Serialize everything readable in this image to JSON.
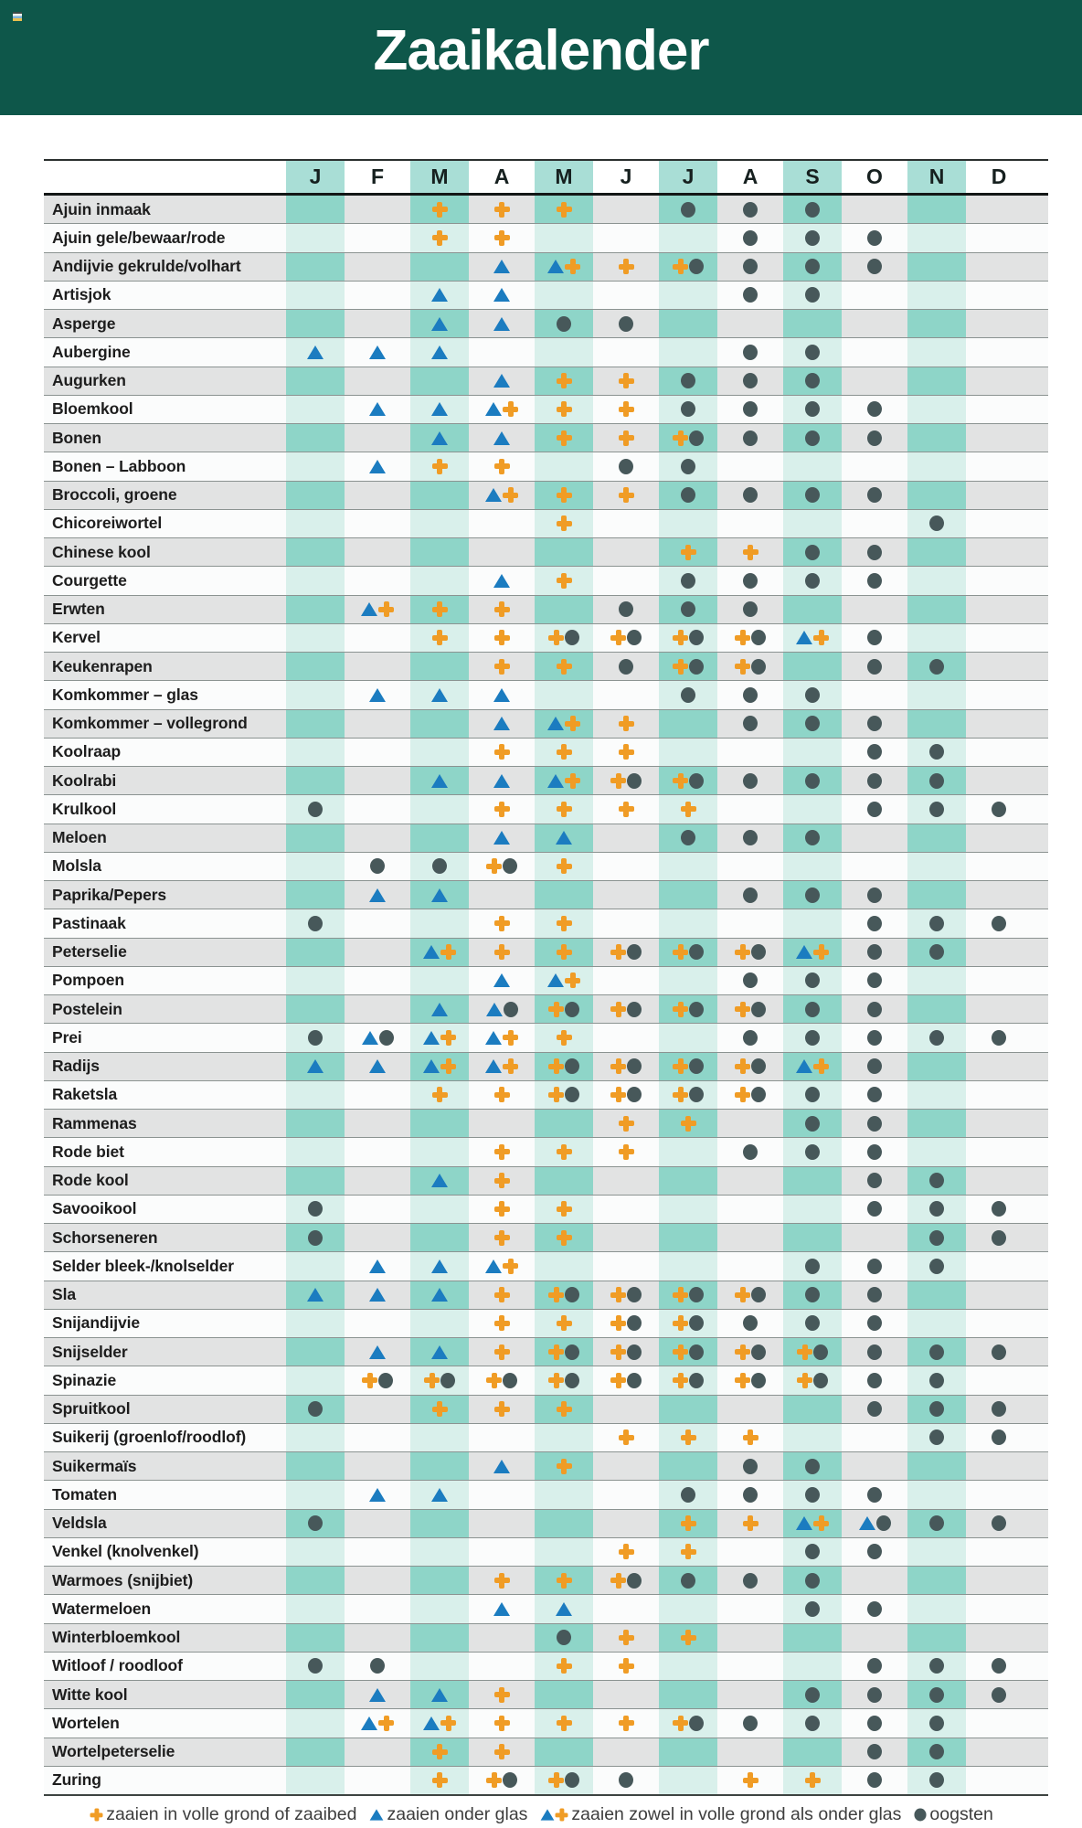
{
  "title": "Zaaikalender",
  "colors": {
    "header_green": "#0e574a",
    "title_text": "#ffffff",
    "header_band_teal": "#a9ded6",
    "band_teal_on_gray_row": "#8ed5c8",
    "band_teal_on_white_row": "#d9f0eb",
    "row_gray": "#e2e3e3",
    "row_white": "#fbfcfc",
    "plus_orange": "#f09c25",
    "triangle_blue": "#1b7cc0",
    "circle_dark": "#47585a",
    "row_line": "#8b9391",
    "legend_text": "#3e3e3e"
  },
  "chart_data": {
    "type": "table",
    "title": "Zaaikalender",
    "columns": [
      "J",
      "F",
      "M",
      "A",
      "M",
      "J",
      "J",
      "A",
      "S",
      "O",
      "N",
      "D"
    ],
    "symbol_codes": {
      "P": "plus — zaaien in volle grond of zaaibed",
      "T": "triangle — zaaien onder glas",
      "C": "circle — oogsten"
    },
    "rows": [
      {
        "name": "Ajuin inmaak",
        "cells": [
          "",
          "",
          "P",
          "P",
          "P",
          "",
          "C",
          "C",
          "C",
          "",
          "",
          ""
        ]
      },
      {
        "name": "Ajuin gele/bewaar/rode",
        "cells": [
          "",
          "",
          "P",
          "P",
          "",
          "",
          "",
          "C",
          "C",
          "C",
          "",
          ""
        ]
      },
      {
        "name": "Andijvie gekrulde/volhart",
        "cells": [
          "",
          "",
          "",
          "T",
          "TP",
          "P",
          "PC",
          "C",
          "C",
          "C",
          "",
          ""
        ]
      },
      {
        "name": "Artisjok",
        "cells": [
          "",
          "",
          "T",
          "T",
          "",
          "",
          "",
          "C",
          "C",
          "",
          "",
          ""
        ]
      },
      {
        "name": "Asperge",
        "cells": [
          "",
          "",
          "T",
          "T",
          "C",
          "C",
          "",
          "",
          "",
          "",
          "",
          ""
        ]
      },
      {
        "name": "Aubergine",
        "cells": [
          "T",
          "T",
          "T",
          "",
          "",
          "",
          "",
          "C",
          "C",
          "",
          "",
          ""
        ]
      },
      {
        "name": "Augurken",
        "cells": [
          "",
          "",
          "",
          "T",
          "P",
          "P",
          "C",
          "C",
          "C",
          "",
          "",
          ""
        ]
      },
      {
        "name": "Bloemkool",
        "cells": [
          "",
          "T",
          "T",
          "TP",
          "P",
          "P",
          "C",
          "C",
          "C",
          "C",
          "",
          ""
        ]
      },
      {
        "name": "Bonen",
        "cells": [
          "",
          "",
          "T",
          "T",
          "P",
          "P",
          "PC",
          "C",
          "C",
          "C",
          "",
          ""
        ]
      },
      {
        "name": "Bonen – Labboon",
        "cells": [
          "",
          "T",
          "P",
          "P",
          "",
          "C",
          "C",
          "",
          "",
          "",
          "",
          ""
        ]
      },
      {
        "name": "Broccoli, groene",
        "cells": [
          "",
          "",
          "",
          "TP",
          "P",
          "P",
          "C",
          "C",
          "C",
          "C",
          "",
          ""
        ]
      },
      {
        "name": "Chicoreiwortel",
        "cells": [
          "",
          "",
          "",
          "",
          "P",
          "",
          "",
          "",
          "",
          "",
          "C",
          ""
        ]
      },
      {
        "name": "Chinese kool",
        "cells": [
          "",
          "",
          "",
          "",
          "",
          "",
          "P",
          "P",
          "C",
          "C",
          "",
          ""
        ]
      },
      {
        "name": "Courgette",
        "cells": [
          "",
          "",
          "",
          "T",
          "P",
          "",
          "C",
          "C",
          "C",
          "C",
          "",
          ""
        ]
      },
      {
        "name": "Erwten",
        "cells": [
          "",
          "TP",
          "P",
          "P",
          "",
          "C",
          "C",
          "C",
          "",
          "",
          "",
          ""
        ]
      },
      {
        "name": "Kervel",
        "cells": [
          "",
          "",
          "P",
          "P",
          "PC",
          "PC",
          "PC",
          "PC",
          "TP",
          "C",
          "",
          ""
        ]
      },
      {
        "name": "Keukenrapen",
        "cells": [
          "",
          "",
          "",
          "P",
          "P",
          "C",
          "PC",
          "PC",
          "",
          "C",
          "C",
          ""
        ]
      },
      {
        "name": "Komkommer – glas",
        "cells": [
          "",
          "T",
          "T",
          "T",
          "",
          "",
          "C",
          "C",
          "C",
          "",
          "",
          ""
        ]
      },
      {
        "name": "Komkommer – vollegrond",
        "cells": [
          "",
          "",
          "",
          "T",
          "TP",
          "P",
          "",
          "C",
          "C",
          "C",
          "",
          ""
        ]
      },
      {
        "name": "Koolraap",
        "cells": [
          "",
          "",
          "",
          "P",
          "P",
          "P",
          "",
          "",
          "",
          "C",
          "C",
          ""
        ]
      },
      {
        "name": "Koolrabi",
        "cells": [
          "",
          "",
          "T",
          "T",
          "TP",
          "PC",
          "PC",
          "C",
          "C",
          "C",
          "C",
          ""
        ]
      },
      {
        "name": "Krulkool",
        "cells": [
          "C",
          "",
          "",
          "P",
          "P",
          "P",
          "P",
          "",
          "",
          "C",
          "C",
          "C"
        ]
      },
      {
        "name": "Meloen",
        "cells": [
          "",
          "",
          "",
          "T",
          "T",
          "",
          "C",
          "C",
          "C",
          "",
          "",
          ""
        ]
      },
      {
        "name": "Molsla",
        "cells": [
          "",
          "C",
          "C",
          "PC",
          "P",
          "",
          "",
          "",
          "",
          "",
          "",
          ""
        ]
      },
      {
        "name": "Paprika/Pepers",
        "cells": [
          "",
          "T",
          "T",
          "",
          "",
          "",
          "",
          "C",
          "C",
          "C",
          "",
          ""
        ]
      },
      {
        "name": "Pastinaak",
        "cells": [
          "C",
          "",
          "",
          "P",
          "P",
          "",
          "",
          "",
          "",
          "C",
          "C",
          "C"
        ]
      },
      {
        "name": "Peterselie",
        "cells": [
          "",
          "",
          "TP",
          "P",
          "P",
          "PC",
          "PC",
          "PC",
          "TP",
          "C",
          "C",
          ""
        ]
      },
      {
        "name": "Pompoen",
        "cells": [
          "",
          "",
          "",
          "T",
          "TP",
          "",
          "",
          "C",
          "C",
          "C",
          "",
          ""
        ]
      },
      {
        "name": "Postelein",
        "cells": [
          "",
          "",
          "T",
          "TC",
          "PC",
          "PC",
          "PC",
          "PC",
          "C",
          "C",
          "",
          ""
        ]
      },
      {
        "name": "Prei",
        "cells": [
          "C",
          "TC",
          "TP",
          "TP",
          "P",
          "",
          "",
          "C",
          "C",
          "C",
          "C",
          "C"
        ]
      },
      {
        "name": "Radijs",
        "cells": [
          "T",
          "T",
          "TP",
          "TP",
          "PC",
          "PC",
          "PC",
          "PC",
          "TP",
          "C",
          "",
          ""
        ]
      },
      {
        "name": "Raketsla",
        "cells": [
          "",
          "",
          "P",
          "P",
          "PC",
          "PC",
          "PC",
          "PC",
          "C",
          "C",
          "",
          ""
        ]
      },
      {
        "name": "Rammenas",
        "cells": [
          "",
          "",
          "",
          "",
          "",
          "P",
          "P",
          "",
          "C",
          "C",
          "",
          ""
        ]
      },
      {
        "name": "Rode biet",
        "cells": [
          "",
          "",
          "",
          "P",
          "P",
          "P",
          "",
          "C",
          "C",
          "C",
          "",
          ""
        ]
      },
      {
        "name": "Rode kool",
        "cells": [
          "",
          "",
          "T",
          "P",
          "",
          "",
          "",
          "",
          "",
          "C",
          "C",
          ""
        ]
      },
      {
        "name": "Savooikool",
        "cells": [
          "C",
          "",
          "",
          "P",
          "P",
          "",
          "",
          "",
          "",
          "C",
          "C",
          "C"
        ]
      },
      {
        "name": "Schorseneren",
        "cells": [
          "C",
          "",
          "",
          "P",
          "P",
          "",
          "",
          "",
          "",
          "",
          "C",
          "C"
        ]
      },
      {
        "name": "Selder bleek-/knolselder",
        "cells": [
          "",
          "T",
          "T",
          "TP",
          "",
          "",
          "",
          "",
          "C",
          "C",
          "C",
          ""
        ]
      },
      {
        "name": "Sla",
        "cells": [
          "T",
          "T",
          "T",
          "P",
          "PC",
          "PC",
          "PC",
          "PC",
          "C",
          "C",
          "",
          ""
        ]
      },
      {
        "name": "Snijandijvie",
        "cells": [
          "",
          "",
          "",
          "P",
          "P",
          "PC",
          "PC",
          "C",
          "C",
          "C",
          "",
          ""
        ]
      },
      {
        "name": "Snijselder",
        "cells": [
          "",
          "T",
          "T",
          "P",
          "PC",
          "PC",
          "PC",
          "PC",
          "PC",
          "C",
          "C",
          "C"
        ]
      },
      {
        "name": "Spinazie",
        "cells": [
          "",
          "PC",
          "PC",
          "PC",
          "PC",
          "PC",
          "PC",
          "PC",
          "PC",
          "C",
          "C",
          ""
        ]
      },
      {
        "name": "Spruitkool",
        "cells": [
          "C",
          "",
          "P",
          "P",
          "P",
          "",
          "",
          "",
          "",
          "C",
          "C",
          "C"
        ]
      },
      {
        "name": "Suikerij (groenlof/roodlof)",
        "cells": [
          "",
          "",
          "",
          "",
          "",
          "P",
          "P",
          "P",
          "",
          "",
          "C",
          "C"
        ]
      },
      {
        "name": "Suikermaïs",
        "cells": [
          "",
          "",
          "",
          "T",
          "P",
          "",
          "",
          "C",
          "C",
          "",
          "",
          ""
        ]
      },
      {
        "name": "Tomaten",
        "cells": [
          "",
          "T",
          "T",
          "",
          "",
          "",
          "C",
          "C",
          "C",
          "C",
          "",
          ""
        ]
      },
      {
        "name": "Veldsla",
        "cells": [
          "C",
          "",
          "",
          "",
          "",
          "",
          "P",
          "P",
          "TP",
          "TC",
          "C",
          "C"
        ]
      },
      {
        "name": "Venkel (knolvenkel)",
        "cells": [
          "",
          "",
          "",
          "",
          "",
          "P",
          "P",
          "",
          "C",
          "C",
          "",
          ""
        ]
      },
      {
        "name": "Warmoes (snijbiet)",
        "cells": [
          "",
          "",
          "",
          "P",
          "P",
          "PC",
          "C",
          "C",
          "C",
          "",
          "",
          ""
        ]
      },
      {
        "name": "Watermeloen",
        "cells": [
          "",
          "",
          "",
          "T",
          "T",
          "",
          "",
          "",
          "C",
          "C",
          "",
          ""
        ]
      },
      {
        "name": "Winterbloemkool",
        "cells": [
          "",
          "",
          "",
          "",
          "C",
          "P",
          "P",
          "",
          "",
          "",
          "",
          ""
        ]
      },
      {
        "name": "Witloof / roodloof",
        "cells": [
          "C",
          "C",
          "",
          "",
          "P",
          "P",
          "",
          "",
          "",
          "C",
          "C",
          "C"
        ]
      },
      {
        "name": "Witte kool",
        "cells": [
          "",
          "T",
          "T",
          "P",
          "",
          "",
          "",
          "",
          "C",
          "C",
          "C",
          "C"
        ]
      },
      {
        "name": "Wortelen",
        "cells": [
          "",
          "TP",
          "TP",
          "P",
          "P",
          "P",
          "PC",
          "C",
          "C",
          "C",
          "C",
          ""
        ]
      },
      {
        "name": "Wortelpeterselie",
        "cells": [
          "",
          "",
          "P",
          "P",
          "",
          "",
          "",
          "",
          "",
          "C",
          "C",
          ""
        ]
      },
      {
        "name": "Zuring",
        "cells": [
          "",
          "",
          "P",
          "PC",
          "PC",
          "C",
          "",
          "P",
          "P",
          "C",
          "C",
          ""
        ]
      }
    ],
    "legend": [
      {
        "icons": [
          "P"
        ],
        "label": "zaaien in volle grond of zaaibed"
      },
      {
        "icons": [
          "T"
        ],
        "label": "zaaien onder glas"
      },
      {
        "icons": [
          "T",
          "P"
        ],
        "label": "zaaien zowel in volle grond als onder glas"
      },
      {
        "icons": [
          "C"
        ],
        "label": "oogsten"
      }
    ]
  }
}
